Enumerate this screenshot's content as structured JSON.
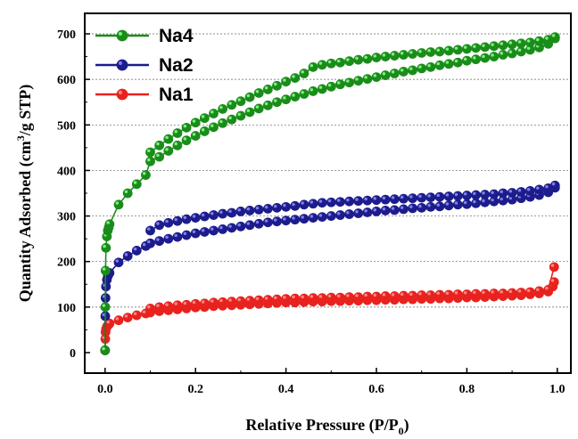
{
  "chart_data": {
    "type": "scatter",
    "title": "",
    "xlabel": "Relative Pressure (P/P",
    "xlabel_sub": "0",
    "xlabel_close": ")",
    "ylabel_main": "Quantity Adsorbed (cm",
    "ylabel_sup": "3",
    "ylabel_rest": "/g STP)",
    "xlim": [
      -0.045,
      1.03
    ],
    "ylim": [
      -45,
      745
    ],
    "xticks": [
      0.0,
      0.2,
      0.4,
      0.6,
      0.8,
      1.0
    ],
    "xtick_labels": [
      "0.0",
      "0.2",
      "0.4",
      "0.6",
      "0.8",
      "1.0"
    ],
    "yticks": [
      0,
      100,
      200,
      300,
      400,
      500,
      600,
      700
    ],
    "ytick_labels": [
      "0",
      "100",
      "200",
      "300",
      "400",
      "500",
      "600",
      "700"
    ],
    "grid": "horizontal-dashed",
    "legend_position": "top-left",
    "series": [
      {
        "name": "Na4",
        "color": "#1a8c1a",
        "adsorption": [
          [
            0.0,
            5
          ],
          [
            0.0005,
            100
          ],
          [
            0.001,
            180
          ],
          [
            0.002,
            230
          ],
          [
            0.004,
            255
          ],
          [
            0.006,
            268
          ],
          [
            0.008,
            275
          ],
          [
            0.01,
            282
          ],
          [
            0.03,
            325
          ],
          [
            0.05,
            350
          ],
          [
            0.07,
            370
          ],
          [
            0.09,
            390
          ],
          [
            0.1,
            420
          ],
          [
            0.12,
            430
          ],
          [
            0.14,
            443
          ],
          [
            0.16,
            455
          ],
          [
            0.18,
            466
          ],
          [
            0.2,
            476
          ],
          [
            0.22,
            486
          ],
          [
            0.24,
            495
          ],
          [
            0.26,
            504
          ],
          [
            0.28,
            512
          ],
          [
            0.3,
            520
          ],
          [
            0.32,
            528
          ],
          [
            0.34,
            536
          ],
          [
            0.36,
            543
          ],
          [
            0.38,
            550
          ],
          [
            0.4,
            556
          ],
          [
            0.42,
            562
          ],
          [
            0.44,
            568
          ],
          [
            0.46,
            574
          ],
          [
            0.48,
            579
          ],
          [
            0.5,
            584
          ],
          [
            0.52,
            589
          ],
          [
            0.54,
            593
          ],
          [
            0.56,
            597
          ],
          [
            0.58,
            601
          ],
          [
            0.6,
            605
          ],
          [
            0.62,
            609
          ],
          [
            0.64,
            613
          ],
          [
            0.66,
            617
          ],
          [
            0.68,
            620
          ],
          [
            0.7,
            624
          ],
          [
            0.72,
            627
          ],
          [
            0.74,
            631
          ],
          [
            0.76,
            634
          ],
          [
            0.78,
            637
          ],
          [
            0.8,
            641
          ],
          [
            0.82,
            644
          ],
          [
            0.84,
            647
          ],
          [
            0.86,
            650
          ],
          [
            0.88,
            654
          ],
          [
            0.9,
            657
          ],
          [
            0.92,
            661
          ],
          [
            0.94,
            665
          ],
          [
            0.96,
            670
          ],
          [
            0.98,
            678
          ],
          [
            0.995,
            690
          ]
        ],
        "desorption": [
          [
            0.995,
            693
          ],
          [
            0.98,
            687
          ],
          [
            0.96,
            684
          ],
          [
            0.94,
            681
          ],
          [
            0.92,
            679
          ],
          [
            0.9,
            677
          ],
          [
            0.88,
            675
          ],
          [
            0.86,
            673
          ],
          [
            0.84,
            671
          ],
          [
            0.82,
            669
          ],
          [
            0.8,
            667
          ],
          [
            0.78,
            665
          ],
          [
            0.76,
            663
          ],
          [
            0.74,
            661
          ],
          [
            0.72,
            660
          ],
          [
            0.7,
            658
          ],
          [
            0.68,
            656
          ],
          [
            0.66,
            654
          ],
          [
            0.64,
            652
          ],
          [
            0.62,
            650
          ],
          [
            0.6,
            648
          ],
          [
            0.58,
            645
          ],
          [
            0.56,
            643
          ],
          [
            0.54,
            640
          ],
          [
            0.52,
            637
          ],
          [
            0.5,
            635
          ],
          [
            0.48,
            632
          ],
          [
            0.46,
            627
          ],
          [
            0.44,
            613
          ],
          [
            0.42,
            603
          ],
          [
            0.4,
            595
          ],
          [
            0.38,
            586
          ],
          [
            0.36,
            578
          ],
          [
            0.34,
            570
          ],
          [
            0.32,
            561
          ],
          [
            0.3,
            552
          ],
          [
            0.28,
            544
          ],
          [
            0.26,
            535
          ],
          [
            0.24,
            525
          ],
          [
            0.22,
            515
          ],
          [
            0.2,
            505
          ],
          [
            0.18,
            494
          ],
          [
            0.16,
            482
          ],
          [
            0.14,
            469
          ],
          [
            0.12,
            455
          ],
          [
            0.1,
            440
          ]
        ]
      },
      {
        "name": "Na2",
        "color": "#1c1c8c",
        "adsorption": [
          [
            0.0,
            5
          ],
          [
            0.0005,
            80
          ],
          [
            0.001,
            120
          ],
          [
            0.002,
            145
          ],
          [
            0.004,
            160
          ],
          [
            0.006,
            168
          ],
          [
            0.008,
            172
          ],
          [
            0.01,
            175
          ],
          [
            0.03,
            198
          ],
          [
            0.05,
            212
          ],
          [
            0.07,
            224
          ],
          [
            0.09,
            234
          ],
          [
            0.1,
            240
          ],
          [
            0.12,
            245
          ],
          [
            0.14,
            250
          ],
          [
            0.16,
            254
          ],
          [
            0.18,
            258
          ],
          [
            0.2,
            262
          ],
          [
            0.22,
            265
          ],
          [
            0.24,
            268
          ],
          [
            0.26,
            271
          ],
          [
            0.28,
            274
          ],
          [
            0.3,
            277
          ],
          [
            0.32,
            280
          ],
          [
            0.34,
            283
          ],
          [
            0.36,
            286
          ],
          [
            0.38,
            288
          ],
          [
            0.4,
            290
          ],
          [
            0.42,
            292
          ],
          [
            0.44,
            294
          ],
          [
            0.46,
            296
          ],
          [
            0.48,
            298
          ],
          [
            0.5,
            300
          ],
          [
            0.52,
            302
          ],
          [
            0.54,
            304
          ],
          [
            0.56,
            306
          ],
          [
            0.58,
            308
          ],
          [
            0.6,
            310
          ],
          [
            0.62,
            312
          ],
          [
            0.64,
            313
          ],
          [
            0.66,
            315
          ],
          [
            0.68,
            317
          ],
          [
            0.7,
            318
          ],
          [
            0.72,
            320
          ],
          [
            0.74,
            321
          ],
          [
            0.76,
            323
          ],
          [
            0.78,
            325
          ],
          [
            0.8,
            326
          ],
          [
            0.82,
            328
          ],
          [
            0.84,
            330
          ],
          [
            0.86,
            332
          ],
          [
            0.88,
            334
          ],
          [
            0.9,
            336
          ],
          [
            0.92,
            339
          ],
          [
            0.94,
            342
          ],
          [
            0.96,
            346
          ],
          [
            0.98,
            352
          ],
          [
            0.995,
            362
          ]
        ],
        "desorption": [
          [
            0.995,
            367
          ],
          [
            0.98,
            361
          ],
          [
            0.96,
            358
          ],
          [
            0.94,
            355
          ],
          [
            0.92,
            353
          ],
          [
            0.9,
            351
          ],
          [
            0.88,
            350
          ],
          [
            0.86,
            348
          ],
          [
            0.84,
            347
          ],
          [
            0.82,
            346
          ],
          [
            0.8,
            345
          ],
          [
            0.78,
            344
          ],
          [
            0.76,
            343
          ],
          [
            0.74,
            342
          ],
          [
            0.72,
            341
          ],
          [
            0.7,
            340
          ],
          [
            0.68,
            339
          ],
          [
            0.66,
            338
          ],
          [
            0.64,
            337
          ],
          [
            0.62,
            336
          ],
          [
            0.6,
            335
          ],
          [
            0.58,
            334
          ],
          [
            0.56,
            333
          ],
          [
            0.54,
            332
          ],
          [
            0.52,
            331
          ],
          [
            0.5,
            330
          ],
          [
            0.48,
            329
          ],
          [
            0.46,
            327
          ],
          [
            0.44,
            325
          ],
          [
            0.42,
            322
          ],
          [
            0.4,
            320
          ],
          [
            0.38,
            318
          ],
          [
            0.36,
            316
          ],
          [
            0.34,
            314
          ],
          [
            0.32,
            312
          ],
          [
            0.3,
            310
          ],
          [
            0.28,
            307
          ],
          [
            0.26,
            305
          ],
          [
            0.24,
            302
          ],
          [
            0.22,
            299
          ],
          [
            0.2,
            296
          ],
          [
            0.18,
            293
          ],
          [
            0.16,
            289
          ],
          [
            0.14,
            285
          ],
          [
            0.12,
            280
          ],
          [
            0.1,
            268
          ]
        ]
      },
      {
        "name": "Na1",
        "color": "#e8221e",
        "adsorption": [
          [
            0.0,
            5
          ],
          [
            0.0005,
            30
          ],
          [
            0.001,
            45
          ],
          [
            0.002,
            52
          ],
          [
            0.004,
            57
          ],
          [
            0.006,
            60
          ],
          [
            0.008,
            62
          ],
          [
            0.01,
            64
          ],
          [
            0.03,
            71
          ],
          [
            0.05,
            77
          ],
          [
            0.07,
            82
          ],
          [
            0.09,
            86
          ],
          [
            0.1,
            88
          ],
          [
            0.12,
            91
          ],
          [
            0.14,
            93
          ],
          [
            0.16,
            95
          ],
          [
            0.18,
            97
          ],
          [
            0.2,
            99
          ],
          [
            0.22,
            100
          ],
          [
            0.24,
            102
          ],
          [
            0.26,
            103
          ],
          [
            0.28,
            104
          ],
          [
            0.3,
            105
          ],
          [
            0.32,
            106
          ],
          [
            0.34,
            107
          ],
          [
            0.36,
            108
          ],
          [
            0.38,
            109
          ],
          [
            0.4,
            110
          ],
          [
            0.42,
            110
          ],
          [
            0.44,
            111
          ],
          [
            0.46,
            112
          ],
          [
            0.48,
            112
          ],
          [
            0.5,
            113
          ],
          [
            0.52,
            113
          ],
          [
            0.54,
            114
          ],
          [
            0.56,
            114
          ],
          [
            0.58,
            115
          ],
          [
            0.6,
            115
          ],
          [
            0.62,
            116
          ],
          [
            0.64,
            116
          ],
          [
            0.66,
            117
          ],
          [
            0.68,
            117
          ],
          [
            0.7,
            118
          ],
          [
            0.72,
            118
          ],
          [
            0.74,
            119
          ],
          [
            0.76,
            119
          ],
          [
            0.78,
            120
          ],
          [
            0.8,
            121
          ],
          [
            0.82,
            121
          ],
          [
            0.84,
            122
          ],
          [
            0.86,
            123
          ],
          [
            0.88,
            124
          ],
          [
            0.9,
            125
          ],
          [
            0.92,
            126
          ],
          [
            0.94,
            128
          ],
          [
            0.96,
            130
          ],
          [
            0.98,
            134
          ],
          [
            0.99,
            145
          ],
          [
            0.993,
            155
          ]
        ],
        "desorption": [
          [
            0.993,
            188
          ],
          [
            0.98,
            138
          ],
          [
            0.96,
            135
          ],
          [
            0.94,
            133
          ],
          [
            0.92,
            132
          ],
          [
            0.9,
            131
          ],
          [
            0.88,
            130
          ],
          [
            0.86,
            130
          ],
          [
            0.84,
            129
          ],
          [
            0.82,
            129
          ],
          [
            0.8,
            128
          ],
          [
            0.78,
            128
          ],
          [
            0.76,
            127
          ],
          [
            0.74,
            127
          ],
          [
            0.72,
            126
          ],
          [
            0.7,
            126
          ],
          [
            0.68,
            125
          ],
          [
            0.66,
            125
          ],
          [
            0.64,
            124
          ],
          [
            0.62,
            124
          ],
          [
            0.6,
            123
          ],
          [
            0.58,
            123
          ],
          [
            0.56,
            122
          ],
          [
            0.54,
            122
          ],
          [
            0.52,
            121
          ],
          [
            0.5,
            121
          ],
          [
            0.48,
            120
          ],
          [
            0.46,
            120
          ],
          [
            0.44,
            119
          ],
          [
            0.42,
            119
          ],
          [
            0.4,
            118
          ],
          [
            0.38,
            117
          ],
          [
            0.36,
            116
          ],
          [
            0.34,
            115
          ],
          [
            0.32,
            114
          ],
          [
            0.3,
            113
          ],
          [
            0.28,
            112
          ],
          [
            0.26,
            111
          ],
          [
            0.24,
            110
          ],
          [
            0.22,
            108
          ],
          [
            0.2,
            107
          ],
          [
            0.18,
            105
          ],
          [
            0.16,
            104
          ],
          [
            0.14,
            102
          ],
          [
            0.12,
            100
          ],
          [
            0.1,
            97
          ]
        ]
      }
    ]
  }
}
